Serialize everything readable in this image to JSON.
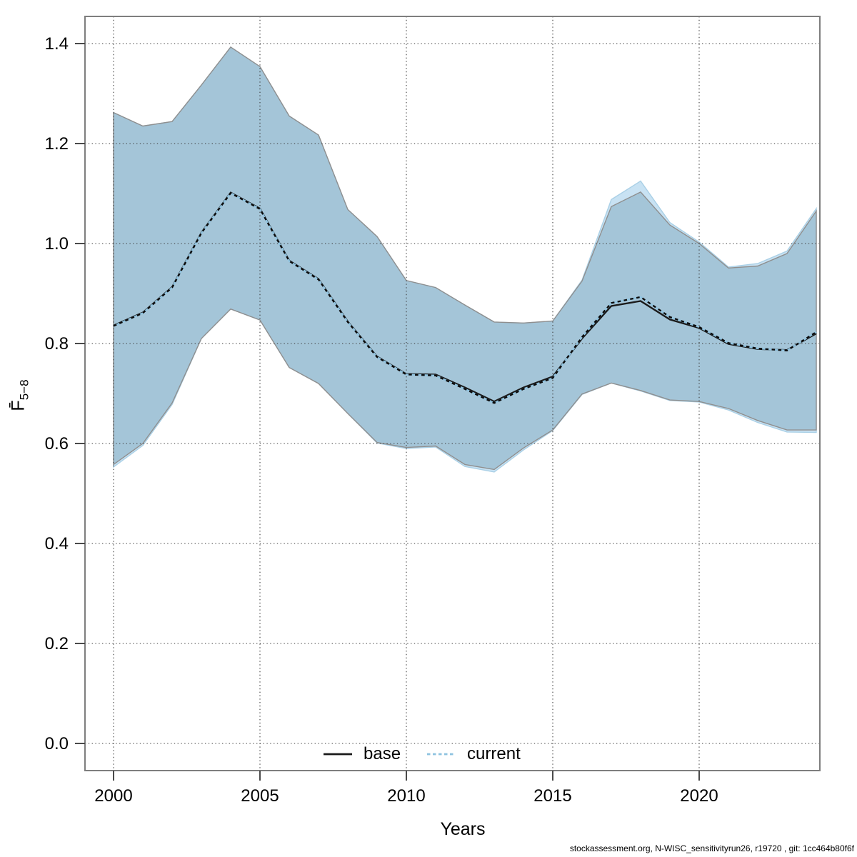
{
  "figure": {
    "footer": "stockassessment.org, N-WISC_sensitivityrun26, r19720 , git: 1cc464b80f6f"
  },
  "chart_data": {
    "type": "line",
    "title": "",
    "xlabel": "Years",
    "ylabel_main": "F̄",
    "ylabel_sub": "5−8",
    "grid": true,
    "legend_position": "bottom-center",
    "xlim": [
      1999.0,
      2024.1
    ],
    "ylim": [
      -0.054,
      1.454
    ],
    "xticks": [
      2000,
      2005,
      2010,
      2015,
      2020
    ],
    "yticks": [
      0.0,
      0.2,
      0.4,
      0.6,
      0.8,
      1.0,
      1.2,
      1.4
    ],
    "x": [
      2000,
      2001,
      2002,
      2003,
      2004,
      2005,
      2006,
      2007,
      2008,
      2009,
      2010,
      2011,
      2012,
      2013,
      2014,
      2015,
      2016,
      2017,
      2018,
      2019,
      2020,
      2021,
      2022,
      2023,
      2024
    ],
    "series": [
      {
        "name": "base",
        "linestyle": "solid",
        "color": "#1a1a1a",
        "band_fill": "#a4c5d8",
        "band_edge": "#8f8f8f",
        "values": [
          0.836,
          0.862,
          0.913,
          1.022,
          1.102,
          1.07,
          0.966,
          0.929,
          0.844,
          0.774,
          0.739,
          0.738,
          0.712,
          0.684,
          0.712,
          0.734,
          0.81,
          0.875,
          0.885,
          0.848,
          0.831,
          0.799,
          0.789,
          0.787,
          0.82
        ],
        "hi": [
          1.262,
          1.235,
          1.244,
          1.317,
          1.393,
          1.354,
          1.255,
          1.217,
          1.068,
          1.014,
          0.926,
          0.912,
          0.877,
          0.843,
          0.841,
          0.845,
          0.925,
          1.074,
          1.103,
          1.037,
          1.0,
          0.951,
          0.955,
          0.98,
          1.065
        ],
        "lo": [
          0.558,
          0.6,
          0.681,
          0.81,
          0.869,
          0.847,
          0.752,
          0.72,
          0.66,
          0.602,
          0.592,
          0.595,
          0.558,
          0.548,
          0.591,
          0.627,
          0.699,
          0.721,
          0.706,
          0.687,
          0.684,
          0.67,
          0.646,
          0.627,
          0.627
        ]
      },
      {
        "name": "current",
        "linestyle": "dotted",
        "color": "#8fc3e0",
        "overlay_dash_color": "#0a0a0a",
        "band_fill": "#c8e2f3",
        "band_edge": "#aad0e6",
        "values": [
          0.835,
          0.861,
          0.912,
          1.021,
          1.101,
          1.069,
          0.965,
          0.928,
          0.843,
          0.773,
          0.738,
          0.736,
          0.709,
          0.681,
          0.709,
          0.731,
          0.813,
          0.881,
          0.893,
          0.853,
          0.833,
          0.801,
          0.79,
          0.786,
          0.823
        ],
        "hi": [
          1.262,
          1.235,
          1.244,
          1.317,
          1.393,
          1.354,
          1.255,
          1.217,
          1.068,
          1.014,
          0.926,
          0.912,
          0.877,
          0.843,
          0.841,
          0.845,
          0.927,
          1.088,
          1.125,
          1.042,
          1.003,
          0.953,
          0.96,
          0.985,
          1.07
        ],
        "lo": [
          0.553,
          0.596,
          0.678,
          0.81,
          0.869,
          0.847,
          0.752,
          0.72,
          0.66,
          0.601,
          0.59,
          0.593,
          0.554,
          0.543,
          0.587,
          0.626,
          0.698,
          0.721,
          0.705,
          0.686,
          0.683,
          0.667,
          0.642,
          0.623,
          0.622
        ]
      }
    ]
  }
}
